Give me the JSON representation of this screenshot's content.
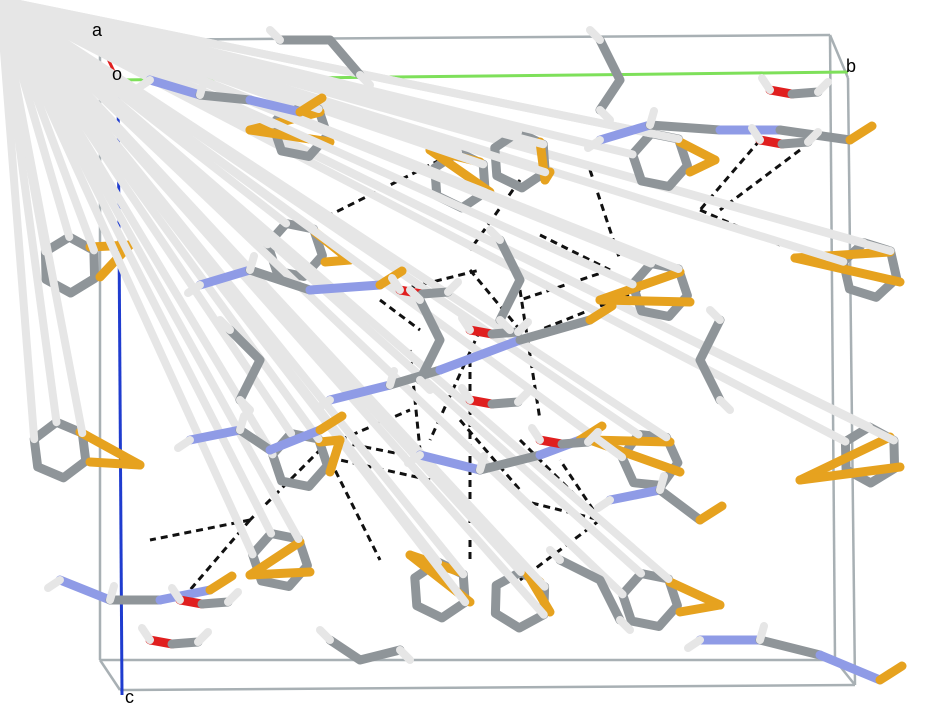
{
  "axes": {
    "a": "a",
    "b": "b",
    "c": "c",
    "origin": "o"
  },
  "colors": {
    "carbon": "#8f9599",
    "hydrogen": "#e6e6e6",
    "nitrogen": "#8f9be6",
    "oxygen": "#e01f1f",
    "sulfur": "#e6a21f",
    "cell_edge": "#a8b0b4",
    "axis_a": "#e01f1f",
    "axis_b": "#7ee05a",
    "axis_c": "#1f3ccf",
    "hbond": "#111111"
  }
}
